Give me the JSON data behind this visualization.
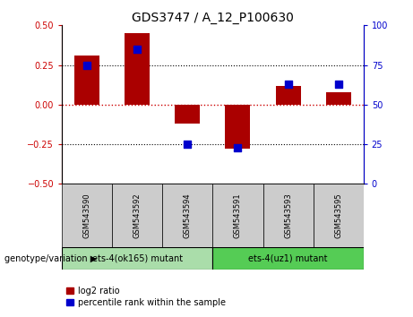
{
  "title": "GDS3747 / A_12_P100630",
  "samples": [
    "GSM543590",
    "GSM543592",
    "GSM543594",
    "GSM543591",
    "GSM543593",
    "GSM543595"
  ],
  "log2_ratio": [
    0.31,
    0.45,
    -0.12,
    -0.28,
    0.12,
    0.08
  ],
  "percentile_rank": [
    75,
    85,
    25,
    23,
    63,
    63
  ],
  "ylim_left": [
    -0.5,
    0.5
  ],
  "ylim_right": [
    0,
    100
  ],
  "yticks_left": [
    -0.5,
    -0.25,
    0.0,
    0.25,
    0.5
  ],
  "yticks_right": [
    0,
    25,
    50,
    75,
    100
  ],
  "bar_color": "#aa0000",
  "dot_color": "#0000cc",
  "hline_color": "#cc0000",
  "grid_color": "#000000",
  "group1_label": "ets-4(ok165) mutant",
  "group2_label": "ets-4(uz1) mutant",
  "group1_indices": [
    0,
    1,
    2
  ],
  "group2_indices": [
    3,
    4,
    5
  ],
  "group1_bg": "#aaddaa",
  "group2_bg": "#55cc55",
  "sample_bg": "#cccccc",
  "genotype_label": "genotype/variation",
  "legend_log2": "log2 ratio",
  "legend_pct": "percentile rank within the sample",
  "bar_width": 0.5,
  "dot_size": 40,
  "title_fontsize": 10,
  "tick_fontsize": 7,
  "label_fontsize": 7,
  "fig_bg": "#ffffff",
  "plot_bg": "#ffffff"
}
